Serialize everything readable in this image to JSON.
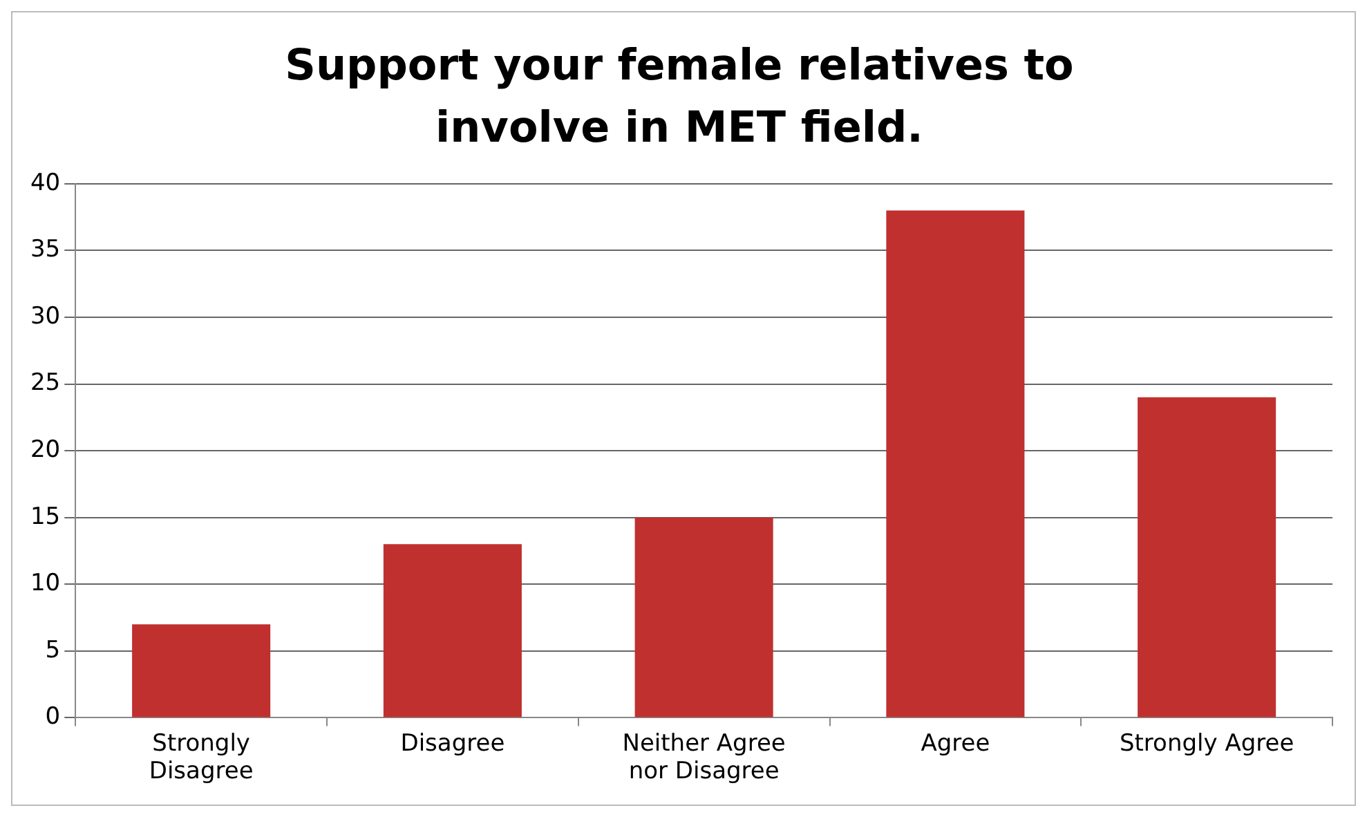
{
  "chart_data": {
    "type": "bar",
    "title": "Support your female relatives to involve in MET field.",
    "categories": [
      "Strongly Disagree",
      "Disagree",
      "Neither Agree nor Disagree",
      "Agree",
      "Strongly Agree"
    ],
    "values": [
      7,
      13,
      15,
      38,
      24
    ],
    "color": "#c0302f",
    "ylim": [
      0,
      40
    ],
    "yticks": [
      0,
      5,
      10,
      15,
      20,
      25,
      30,
      35,
      40
    ],
    "grid": "y",
    "legend": false
  }
}
